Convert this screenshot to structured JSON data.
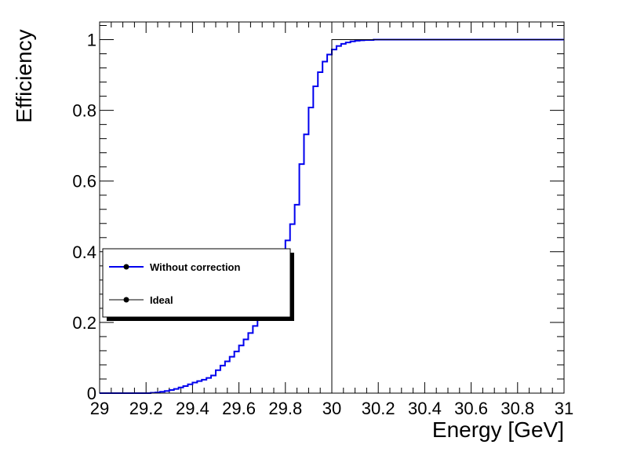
{
  "chart_data": {
    "type": "line",
    "xlabel": "Energy [GeV]",
    "ylabel": "Efficiency",
    "xlim": [
      29,
      31
    ],
    "ylim": [
      0,
      1.05
    ],
    "x_ticks": [
      "29",
      "29.2",
      "29.4",
      "29.6",
      "29.8",
      "30",
      "30.2",
      "30.4",
      "30.6",
      "30.8",
      "31"
    ],
    "y_ticks": [
      "0",
      "0.2",
      "0.4",
      "0.6",
      "0.8",
      "1"
    ],
    "legend_position": "middle-left",
    "series": [
      {
        "name": "Without correction",
        "color": "#0000ee",
        "style": "step",
        "bin_width": 0.02,
        "x": [
          29.0,
          29.02,
          29.04,
          29.06,
          29.08,
          29.1,
          29.12,
          29.14,
          29.16,
          29.18,
          29.2,
          29.22,
          29.24,
          29.26,
          29.28,
          29.3,
          29.32,
          29.34,
          29.36,
          29.38,
          29.4,
          29.42,
          29.44,
          29.46,
          29.48,
          29.5,
          29.52,
          29.54,
          29.56,
          29.58,
          29.6,
          29.62,
          29.64,
          29.66,
          29.68,
          29.7,
          29.72,
          29.74,
          29.76,
          29.78,
          29.8,
          29.82,
          29.84,
          29.86,
          29.88,
          29.9,
          29.92,
          29.94,
          29.96,
          29.98,
          30.0,
          30.02,
          30.04,
          30.06,
          30.08,
          30.1,
          30.12,
          30.14,
          30.16,
          30.18,
          30.2,
          30.22,
          30.24,
          30.26,
          30.28,
          30.3,
          30.32,
          30.34,
          30.36,
          30.38,
          30.4,
          30.42,
          30.44,
          30.46,
          30.48,
          30.5,
          30.52,
          30.54,
          30.56,
          30.58,
          30.6,
          30.62,
          30.64,
          30.66,
          30.68,
          30.7,
          30.72,
          30.74,
          30.76,
          30.78,
          30.8,
          30.82,
          30.84,
          30.86,
          30.88,
          30.9,
          30.92,
          30.94,
          30.96,
          30.98
        ],
        "values": [
          0,
          0,
          0,
          0,
          0,
          0,
          0,
          0,
          0,
          0,
          0,
          0.001,
          0.002,
          0.004,
          0.006,
          0.009,
          0.012,
          0.016,
          0.02,
          0.025,
          0.03,
          0.034,
          0.038,
          0.043,
          0.05,
          0.065,
          0.078,
          0.09,
          0.103,
          0.118,
          0.135,
          0.152,
          0.17,
          0.19,
          0.212,
          0.238,
          0.265,
          0.3,
          0.338,
          0.383,
          0.432,
          0.478,
          0.533,
          0.648,
          0.732,
          0.808,
          0.868,
          0.908,
          0.938,
          0.958,
          0.972,
          0.982,
          0.988,
          0.992,
          0.995,
          0.997,
          0.998,
          0.999,
          0.999,
          1.0,
          1.0,
          1.0,
          1.0,
          1.0,
          1.0,
          1.0,
          1.0,
          1.0,
          1.0,
          1.0,
          1.0,
          1.0,
          1.0,
          1.0,
          1.0,
          1.0,
          1.0,
          1.0,
          1.0,
          1.0,
          1.0,
          1.0,
          1.0,
          1.0,
          1.0,
          1.0,
          1.0,
          1.0,
          1.0,
          1.0,
          1.0,
          1.0,
          1.0,
          1.0,
          1.0,
          1.0,
          1.0,
          1.0,
          1.0,
          1.0
        ]
      },
      {
        "name": "Ideal",
        "color": "#000000",
        "style": "step",
        "x": [
          29,
          30,
          30,
          31
        ],
        "values": [
          0,
          0,
          1,
          1
        ]
      }
    ]
  }
}
